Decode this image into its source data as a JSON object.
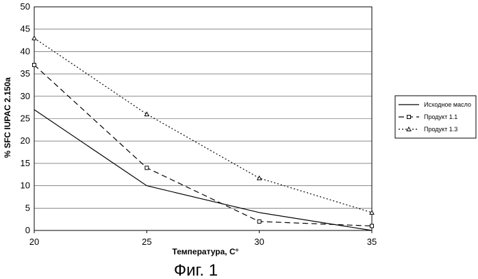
{
  "chart_data": {
    "type": "line",
    "title": "",
    "xlabel": "Температура, С°",
    "ylabel": "% SFC IUPAC 2.150a",
    "caption": "Фиг. 1",
    "xlim": [
      20,
      35
    ],
    "ylim": [
      0,
      50
    ],
    "x_ticks": [
      "20",
      "25",
      "30",
      "35"
    ],
    "y_ticks": [
      "0",
      "5",
      "10",
      "15",
      "20",
      "25",
      "30",
      "35",
      "40",
      "45",
      "50"
    ],
    "x": [
      20,
      25,
      30,
      35
    ],
    "grid": "horizontal",
    "legend_position": "right",
    "series": [
      {
        "name": "Исходное масло",
        "values": [
          27,
          10,
          4,
          0
        ],
        "style": "solid",
        "marker": "none",
        "color": "#000000"
      },
      {
        "name": "Продукт 1.1",
        "values": [
          37,
          14,
          2,
          1
        ],
        "style": "dashed",
        "marker": "square",
        "color": "#000000"
      },
      {
        "name": "Продукт 1.3",
        "values": [
          43,
          26,
          11.7,
          4
        ],
        "style": "dotted",
        "marker": "triangle",
        "color": "#000000"
      }
    ]
  }
}
